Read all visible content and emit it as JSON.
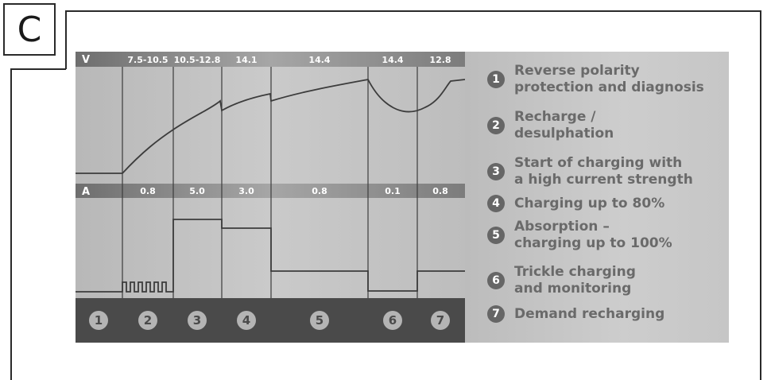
{
  "section_letter": "C",
  "voltage_row": {
    "label": "V",
    "values": [
      "7.5-10.5",
      "10.5-12.8",
      "14.1",
      "14.4",
      "14.4",
      "12.8"
    ]
  },
  "current_row": {
    "label": "A",
    "values": [
      "0.8",
      "5.0",
      "3.0",
      "0.8",
      "0.1",
      "0.8"
    ]
  },
  "steps": [
    "1",
    "2",
    "3",
    "4",
    "5",
    "6",
    "7"
  ],
  "legend": [
    {
      "num": "1",
      "text": "Reverse polarity\nprotection and diagnosis"
    },
    {
      "num": "2",
      "text": "Recharge /\ndesulphation"
    },
    {
      "num": "3",
      "text": "Start of charging with\na high current strength"
    },
    {
      "num": "4",
      "text": "Charging up to 80%"
    },
    {
      "num": "5",
      "text": "Absorption –\ncharging up to 100%"
    },
    {
      "num": "6",
      "text": "Trickle charging\nand monitoring"
    },
    {
      "num": "7",
      "text": "Demand recharging"
    }
  ],
  "colors": {
    "panel_bg": "#c2c2c2",
    "header_bar": "#8a8a8a",
    "curve": "#3c3c3c",
    "step_bar": "#4a4a4a",
    "legend_text": "#6a6a6a"
  }
}
